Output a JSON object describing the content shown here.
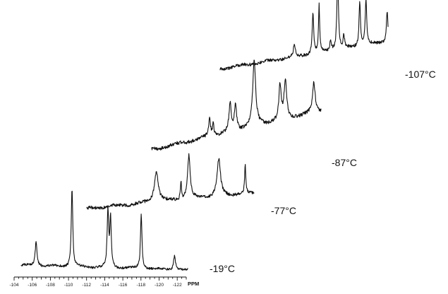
{
  "chart_data": {
    "type": "line",
    "title": "",
    "xlabel": "PPM",
    "ylabel": "",
    "xlim": [
      -104,
      -123
    ],
    "x_ticks": [
      -104,
      -106,
      -108,
      -110,
      -112,
      -114,
      -116,
      -118,
      -120,
      -122
    ],
    "x_tick_labels": [
      "-104",
      "-106",
      "-108",
      "-110",
      "-112",
      "-114",
      "-116",
      "-118",
      "-120",
      "-122"
    ],
    "x_unit": "PPM",
    "grid": false,
    "legend": "none",
    "stacked_offset_spectra": true,
    "series": [
      {
        "temperature": "-19°C",
        "baseline": [
          0.06,
          0.0
        ],
        "noise": 0.03,
        "peaks": [
          {
            "x": -105.7,
            "h": 0.3,
            "w": 0.25
          },
          {
            "x": -109.8,
            "h": 1.0,
            "w": 0.2
          },
          {
            "x": -113.9,
            "h": 0.72,
            "w": 0.2
          },
          {
            "x": -114.2,
            "h": 0.62,
            "w": 0.2
          },
          {
            "x": -117.7,
            "h": 0.7,
            "w": 0.2
          },
          {
            "x": -121.5,
            "h": 0.18,
            "w": 0.25
          }
        ]
      },
      {
        "temperature": "-77°C",
        "baseline": [
          0.03,
          0.28
        ],
        "noise": 0.05,
        "peaks": [
          {
            "x": -111.9,
            "h": 0.48,
            "w": 0.55
          },
          {
            "x": -114.7,
            "h": 0.28,
            "w": 0.15
          },
          {
            "x": -115.6,
            "h": 0.68,
            "w": 0.35
          },
          {
            "x": -119.0,
            "h": 0.58,
            "w": 0.45
          },
          {
            "x": -122.0,
            "h": 0.44,
            "w": 0.15
          }
        ]
      },
      {
        "temperature": "-87°C",
        "baseline": [
          0.2,
          0.75
        ],
        "noise": 0.05,
        "peaks": [
          {
            "x": -110.5,
            "h": 0.24,
            "w": 0.25
          },
          {
            "x": -110.9,
            "h": 0.18,
            "w": 0.2
          },
          {
            "x": -112.8,
            "h": 0.38,
            "w": 0.3
          },
          {
            "x": -113.4,
            "h": 0.35,
            "w": 0.3
          },
          {
            "x": -115.5,
            "h": 0.92,
            "w": 0.4
          },
          {
            "x": -118.4,
            "h": 0.48,
            "w": 0.3
          },
          {
            "x": -119.0,
            "h": 0.52,
            "w": 0.35
          },
          {
            "x": -122.2,
            "h": 0.42,
            "w": 0.35
          }
        ]
      },
      {
        "temperature": "-107°C",
        "baseline": [
          0.25,
          0.6
        ],
        "noise": 0.04,
        "peaks": [
          {
            "x": -112.4,
            "h": 0.16,
            "w": 0.25
          },
          {
            "x": -114.5,
            "h": 0.52,
            "w": 0.2
          },
          {
            "x": -115.2,
            "h": 0.6,
            "w": 0.15
          },
          {
            "x": -116.5,
            "h": 0.12,
            "w": 0.25
          },
          {
            "x": -117.3,
            "h": 1.0,
            "w": 0.2
          },
          {
            "x": -118.0,
            "h": 0.16,
            "w": 0.2
          },
          {
            "x": -119.8,
            "h": 0.58,
            "w": 0.2
          },
          {
            "x": -120.5,
            "h": 0.6,
            "w": 0.2
          },
          {
            "x": -122.9,
            "h": 0.4,
            "w": 0.2
          }
        ]
      }
    ]
  }
}
